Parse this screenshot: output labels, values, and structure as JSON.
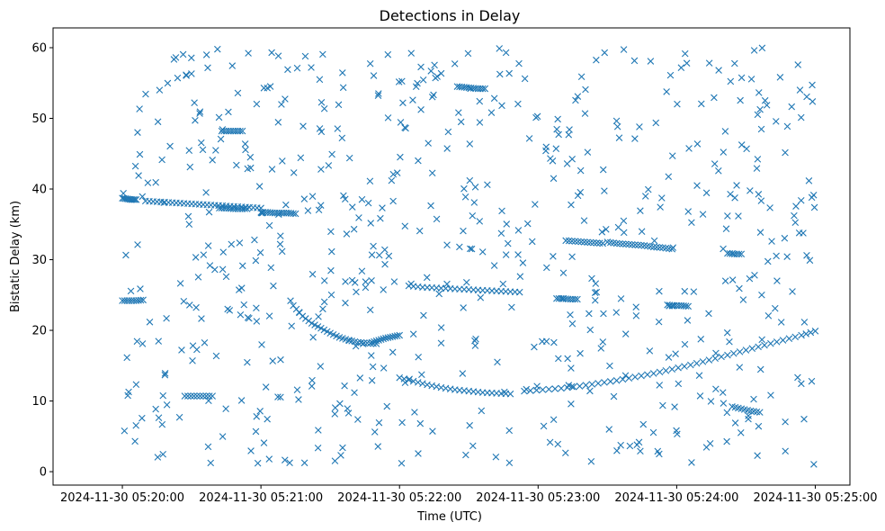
{
  "chart_data": {
    "type": "scatter",
    "title": "Detections in Delay",
    "xlabel": "Time (UTC)",
    "ylabel": "Bistatic Delay (km)",
    "marker": "x",
    "color": "#1f77b4",
    "xlim_seconds": [
      -30,
      315
    ],
    "ylim": [
      -1.9,
      62.8
    ],
    "x_ticks": [
      {
        "seconds": 0,
        "label": "2024-11-30 05:20:00"
      },
      {
        "seconds": 60,
        "label": "2024-11-30 05:21:00"
      },
      {
        "seconds": 120,
        "label": "2024-11-30 05:22:00"
      },
      {
        "seconds": 180,
        "label": "2024-11-30 05:23:00"
      },
      {
        "seconds": 240,
        "label": "2024-11-30 05:24:00"
      },
      {
        "seconds": 300,
        "label": "2024-11-30 05:25:00"
      }
    ],
    "y_ticks": [
      {
        "value": 0,
        "label": "0"
      },
      {
        "value": 10,
        "label": "10"
      },
      {
        "value": 20,
        "label": "20"
      },
      {
        "value": 30,
        "label": "30"
      },
      {
        "value": 40,
        "label": "40"
      },
      {
        "value": 50,
        "label": "50"
      },
      {
        "value": 60,
        "label": "60"
      }
    ],
    "tracks": [
      {
        "name": "track-a",
        "x_seconds": [
          0,
          3,
          6,
          9
        ],
        "y": [
          24.2,
          24.2,
          24.2,
          24.3
        ]
      },
      {
        "name": "track-b",
        "x_seconds": [
          0,
          2,
          4,
          6
        ],
        "y": [
          38.7,
          38.6,
          38.5,
          38.5
        ]
      },
      {
        "name": "track-c",
        "x_seconds": [
          10,
          15,
          20,
          25,
          30,
          35,
          40,
          45,
          50,
          55,
          60
        ],
        "y": [
          38.3,
          38.2,
          38.1,
          38.0,
          37.9,
          37.8,
          37.7,
          37.6,
          37.5,
          37.4,
          37.3
        ]
      },
      {
        "name": "track-d",
        "x_seconds": [
          42,
          45,
          48,
          51,
          54
        ],
        "y": [
          37.3,
          37.3,
          37.2,
          37.2,
          37.2
        ]
      },
      {
        "name": "track-e",
        "x_seconds": [
          43,
          46,
          49,
          52
        ],
        "y": [
          48.2,
          48.2,
          48.2,
          48.2
        ]
      },
      {
        "name": "track-f",
        "x_seconds": [
          60,
          63,
          66,
          69,
          72,
          75
        ],
        "y": [
          36.7,
          36.7,
          36.6,
          36.6,
          36.6,
          36.5
        ]
      },
      {
        "name": "track-g",
        "x_seconds": [
          74,
          78,
          82,
          86,
          90,
          94,
          98,
          102,
          106,
          110
        ],
        "y": [
          23.5,
          22.0,
          21.0,
          20.3,
          19.6,
          19.0,
          18.6,
          18.3,
          18.2,
          18.1
        ]
      },
      {
        "name": "track-h",
        "x_seconds": [
          108,
          111,
          114,
          117,
          120
        ],
        "y": [
          18.3,
          18.6,
          18.9,
          19.1,
          19.3
        ]
      },
      {
        "name": "track-i",
        "x_seconds": [
          120,
          126,
          132,
          138,
          144,
          150,
          156,
          162,
          168
        ],
        "y": [
          13.3,
          12.8,
          12.3,
          11.9,
          11.6,
          11.4,
          11.2,
          11.1,
          11.0
        ]
      },
      {
        "name": "track-j",
        "x_seconds": [
          124,
          130,
          136,
          142,
          148,
          154,
          160,
          166,
          172
        ],
        "y": [
          26.3,
          26.1,
          26.0,
          25.9,
          25.8,
          25.7,
          25.6,
          25.5,
          25.4
        ]
      },
      {
        "name": "track-k",
        "x_seconds": [
          174,
          182,
          190,
          198,
          206,
          214,
          222,
          230,
          238,
          246,
          254,
          262,
          270,
          278,
          286,
          294,
          300
        ],
        "y": [
          11.4,
          11.6,
          11.8,
          12.1,
          12.5,
          12.9,
          13.4,
          13.9,
          14.5,
          15.1,
          15.8,
          16.5,
          17.2,
          17.9,
          18.6,
          19.3,
          19.9
        ]
      },
      {
        "name": "track-l",
        "x_seconds": [
          210,
          214,
          218,
          222,
          226,
          230,
          234,
          238
        ],
        "y": [
          32.5,
          32.3,
          32.2,
          32.1,
          32.0,
          31.8,
          31.7,
          31.5
        ]
      },
      {
        "name": "track-m",
        "x_seconds": [
          192,
          196,
          200,
          204,
          208
        ],
        "y": [
          32.7,
          32.6,
          32.5,
          32.4,
          32.3
        ]
      },
      {
        "name": "track-n",
        "x_seconds": [
          236,
          239,
          242,
          245
        ],
        "y": [
          23.6,
          23.5,
          23.5,
          23.4
        ]
      },
      {
        "name": "track-o",
        "x_seconds": [
          264,
          268,
          272,
          276
        ],
        "y": [
          9.2,
          8.9,
          8.6,
          8.4
        ]
      },
      {
        "name": "track-p",
        "x_seconds": [
          188,
          191,
          194,
          197
        ],
        "y": [
          24.5,
          24.5,
          24.4,
          24.4
        ]
      },
      {
        "name": "track-q",
        "x_seconds": [
          145,
          148,
          151,
          154,
          157
        ],
        "y": [
          54.5,
          54.4,
          54.3,
          54.2,
          54.2
        ]
      },
      {
        "name": "track-r",
        "x_seconds": [
          262,
          265,
          268
        ],
        "y": [
          30.9,
          30.8,
          30.8
        ]
      },
      {
        "name": "track-s",
        "x_seconds": [
          27,
          31,
          35,
          39
        ],
        "y": [
          10.7,
          10.7,
          10.7,
          10.7
        ]
      }
    ],
    "noise": {
      "count": 640,
      "x_range_seconds": [
        0,
        300
      ],
      "y_range": [
        1,
        60
      ],
      "note": "scattered false-alarm detections across the full window"
    }
  }
}
